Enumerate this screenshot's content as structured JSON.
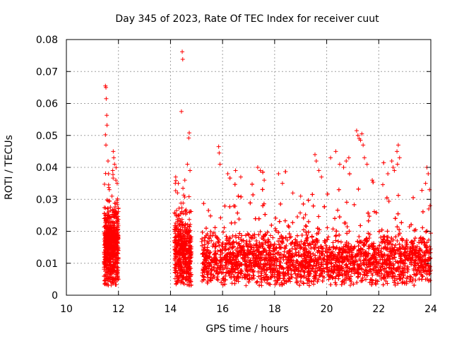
{
  "chart_data": {
    "type": "scatter",
    "title": "Day 345 of 2023, Rate Of TEC Index for receiver cuut",
    "xlabel": "GPS time / hours",
    "ylabel": "ROTI / TECUs",
    "xlim": [
      10,
      24
    ],
    "ylim": [
      0,
      0.08
    ],
    "x_ticks": [
      10,
      12,
      14,
      16,
      18,
      20,
      22,
      24
    ],
    "y_ticks": [
      0,
      0.01,
      0.02,
      0.03,
      0.04,
      0.05,
      0.06,
      0.07,
      0.08
    ],
    "x_tick_labels": [
      "10",
      "12",
      "14",
      "16",
      "18",
      "20",
      "22",
      "24"
    ],
    "y_tick_labels": [
      "0",
      "0.01",
      "0.02",
      "0.03",
      "0.04",
      "0.05",
      "0.06",
      "0.07",
      "0.08"
    ],
    "grid": true,
    "marker": "+",
    "marker_color": "#ff0000",
    "series": [
      {
        "name": "ROTI",
        "points": [
          [
            11.5,
            0.0655
          ],
          [
            11.52,
            0.065
          ],
          [
            11.53,
            0.0615
          ],
          [
            11.55,
            0.0563
          ],
          [
            11.56,
            0.0532
          ],
          [
            11.5,
            0.0502
          ],
          [
            11.52,
            0.047
          ],
          [
            11.6,
            0.042
          ],
          [
            11.62,
            0.038
          ],
          [
            11.8,
            0.045
          ],
          [
            11.82,
            0.043
          ],
          [
            11.85,
            0.041
          ],
          [
            11.78,
            0.039
          ],
          [
            11.9,
            0.036
          ],
          [
            11.95,
            0.035
          ],
          [
            11.65,
            0.033
          ],
          [
            11.75,
            0.031
          ],
          [
            12.0,
            0.005
          ],
          [
            14.45,
            0.0762
          ],
          [
            14.47,
            0.0738
          ],
          [
            14.42,
            0.0575
          ],
          [
            14.72,
            0.0508
          ],
          [
            14.7,
            0.0492
          ],
          [
            14.65,
            0.041
          ],
          [
            14.75,
            0.039
          ],
          [
            14.2,
            0.037
          ],
          [
            14.3,
            0.035
          ],
          [
            14.55,
            0.036
          ],
          [
            15.85,
            0.0465
          ],
          [
            15.87,
            0.0445
          ],
          [
            15.9,
            0.041
          ],
          [
            16.2,
            0.038
          ],
          [
            16.5,
            0.039
          ],
          [
            16.7,
            0.037
          ],
          [
            17.35,
            0.04
          ],
          [
            17.45,
            0.039
          ],
          [
            17.6,
            0.036
          ],
          [
            18.15,
            0.038
          ],
          [
            18.3,
            0.035
          ],
          [
            18.7,
            0.032
          ],
          [
            19.0,
            0.031
          ],
          [
            19.55,
            0.044
          ],
          [
            19.6,
            0.042
          ],
          [
            19.7,
            0.039
          ],
          [
            19.8,
            0.037
          ],
          [
            20.15,
            0.043
          ],
          [
            20.35,
            0.045
          ],
          [
            20.5,
            0.041
          ],
          [
            20.65,
            0.04
          ],
          [
            20.75,
            0.042
          ],
          [
            20.85,
            0.043
          ],
          [
            21.15,
            0.0515
          ],
          [
            21.2,
            0.05
          ],
          [
            21.25,
            0.049
          ],
          [
            21.3,
            0.0485
          ],
          [
            21.35,
            0.0505
          ],
          [
            21.4,
            0.047
          ],
          [
            21.45,
            0.043
          ],
          [
            21.55,
            0.041
          ],
          [
            21.75,
            0.036
          ],
          [
            22.35,
            0.038
          ],
          [
            22.5,
            0.042
          ],
          [
            22.55,
            0.04
          ],
          [
            22.75,
            0.047
          ],
          [
            22.7,
            0.045
          ],
          [
            22.8,
            0.043
          ],
          [
            22.72,
            0.041
          ],
          [
            22.6,
            0.039
          ],
          [
            23.85,
            0.04
          ],
          [
            23.9,
            0.038
          ],
          [
            23.8,
            0.035
          ],
          [
            23.95,
            0.033
          ],
          [
            23.97,
            0.028
          ],
          [
            23.92,
            0.027
          ],
          [
            16.9,
            0.003
          ],
          [
            17.5,
            0.003
          ],
          [
            18.45,
            0.004
          ]
        ]
      }
    ]
  }
}
